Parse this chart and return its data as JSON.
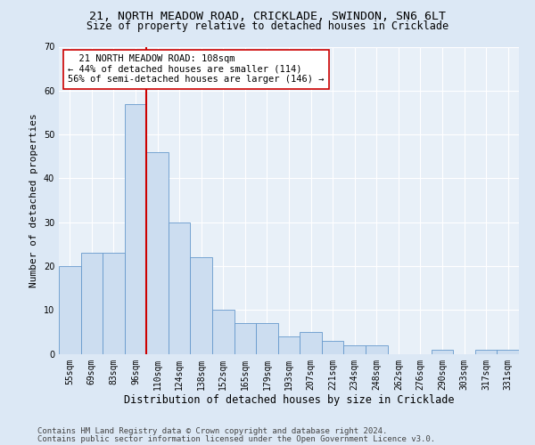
{
  "title_line1": "21, NORTH MEADOW ROAD, CRICKLADE, SWINDON, SN6 6LT",
  "title_line2": "Size of property relative to detached houses in Cricklade",
  "xlabel": "Distribution of detached houses by size in Cricklade",
  "ylabel": "Number of detached properties",
  "categories": [
    "55sqm",
    "69sqm",
    "83sqm",
    "96sqm",
    "110sqm",
    "124sqm",
    "138sqm",
    "152sqm",
    "165sqm",
    "179sqm",
    "193sqm",
    "207sqm",
    "221sqm",
    "234sqm",
    "248sqm",
    "262sqm",
    "276sqm",
    "290sqm",
    "303sqm",
    "317sqm",
    "331sqm"
  ],
  "values": [
    20,
    23,
    23,
    57,
    46,
    30,
    22,
    10,
    7,
    7,
    4,
    5,
    3,
    2,
    2,
    0,
    0,
    1,
    0,
    1,
    1
  ],
  "bar_color": "#ccddf0",
  "bar_edge_color": "#6699cc",
  "vline_color": "#cc0000",
  "annotation_text": "  21 NORTH MEADOW ROAD: 108sqm\n← 44% of detached houses are smaller (114)\n56% of semi-detached houses are larger (146) →",
  "annotation_box_color": "#ffffff",
  "annotation_box_edge": "#cc0000",
  "ylim": [
    0,
    70
  ],
  "yticks": [
    0,
    10,
    20,
    30,
    40,
    50,
    60,
    70
  ],
  "footer_line1": "Contains HM Land Registry data © Crown copyright and database right 2024.",
  "footer_line2": "Contains public sector information licensed under the Open Government Licence v3.0.",
  "bg_color": "#dce8f5",
  "plot_bg_color": "#e8f0f8",
  "grid_color": "#ffffff",
  "title_fontsize": 9.5,
  "subtitle_fontsize": 8.5,
  "tick_fontsize": 7,
  "ylabel_fontsize": 8,
  "xlabel_fontsize": 8.5,
  "footer_fontsize": 6.5,
  "annot_fontsize": 7.5
}
